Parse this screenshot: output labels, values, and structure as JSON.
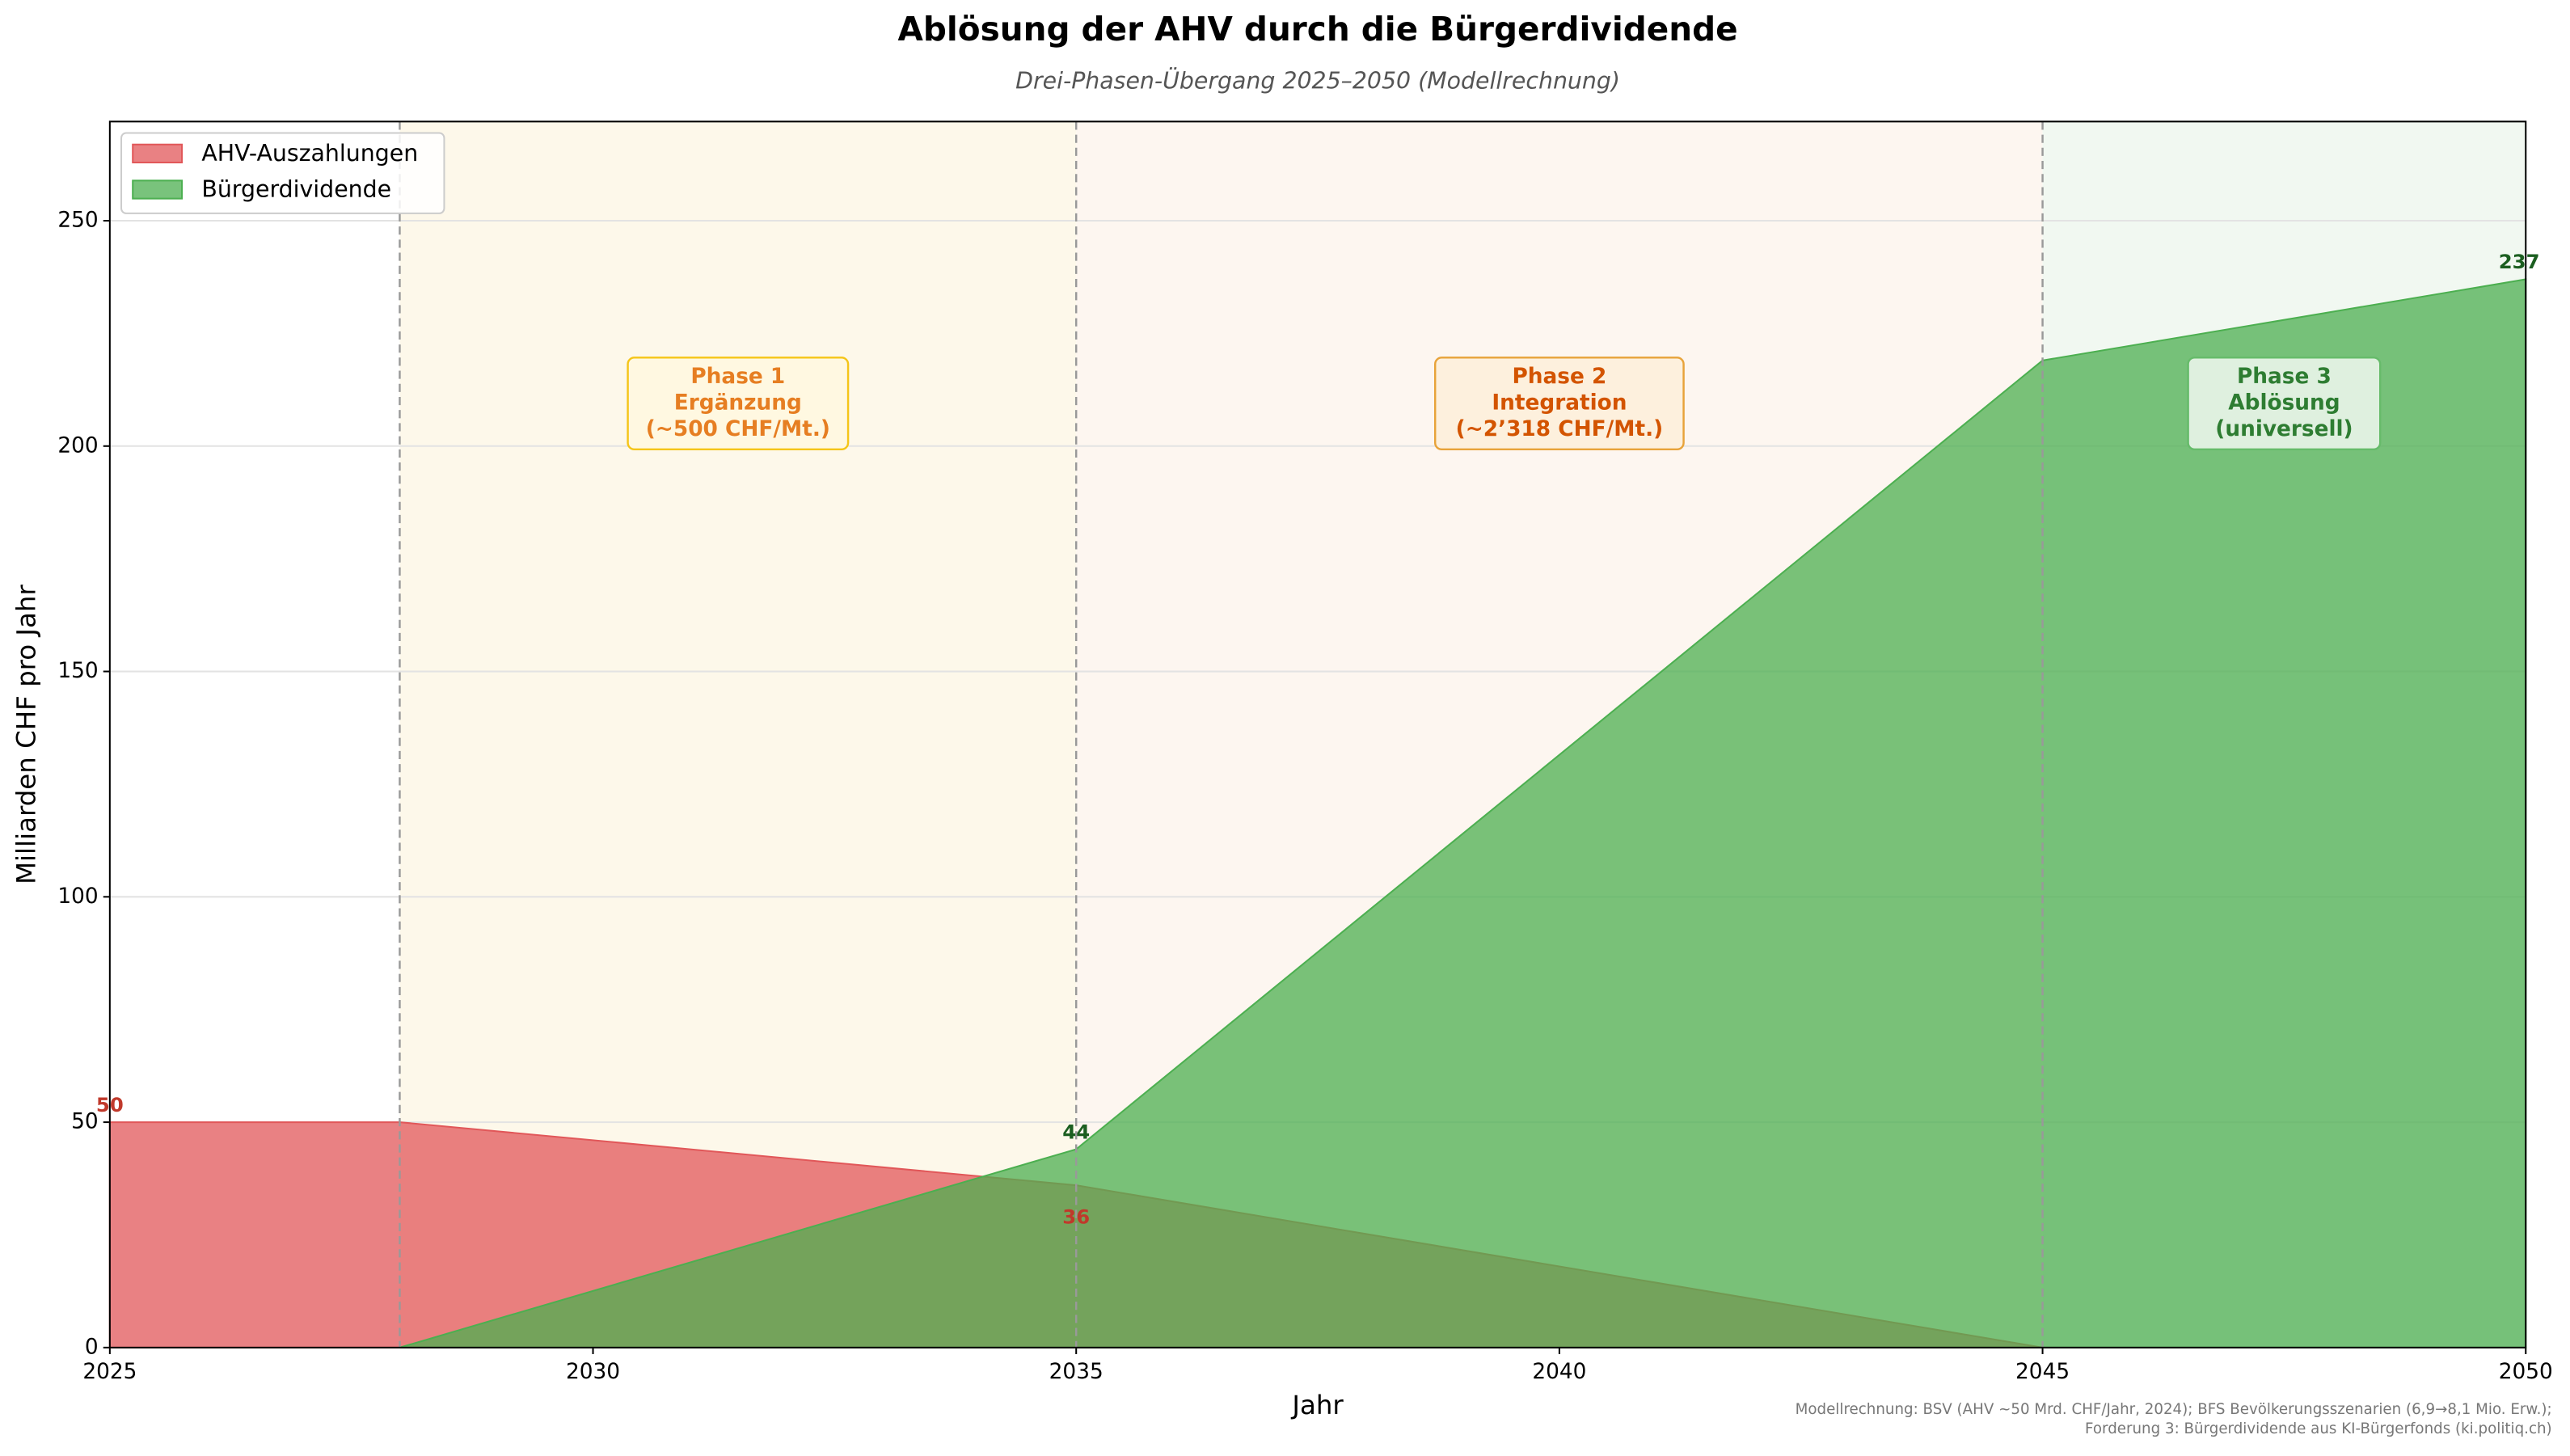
{
  "chart_data": {
    "type": "area",
    "title": "Ablösung der AHV durch die Bürgerdividende",
    "subtitle": "Drei-Phasen-Übergang 2025–2050 (Modellrechnung)",
    "xlabel": "Jahr",
    "ylabel": "Milliarden CHF pro Jahr",
    "x": [
      2025,
      2028,
      2035,
      2045,
      2050
    ],
    "series": [
      {
        "name": "AHV-Auszahlungen",
        "color": "#e15759",
        "label_color": "#c0392b",
        "values": [
          50,
          50,
          36,
          0,
          null
        ]
      },
      {
        "name": "Bürgerdividende",
        "color": "#4caf50",
        "label_color": "#1b5e20",
        "values": [
          null,
          0,
          44,
          219,
          237
        ]
      }
    ],
    "data_labels": [
      {
        "series": 0,
        "index": 0
      },
      {
        "series": 0,
        "index": 2
      },
      {
        "series": 1,
        "index": 2
      },
      {
        "series": 1,
        "index": 4
      }
    ],
    "phases": [
      {
        "start": 2028,
        "end": 2035,
        "color": "#fdf8ea",
        "box": "#fff8e1",
        "border": "#f5c518",
        "text_color": "#e67e22",
        "lines": [
          "Phase 1",
          "Ergänzung",
          "(~500 CHF/Mt.)"
        ]
      },
      {
        "start": 2035,
        "end": 2045,
        "color": "#fdf6f0",
        "box": "#fdf0dd",
        "border": "#e8a33a",
        "text_color": "#d35400",
        "lines": [
          "Phase 2",
          "Integration",
          "(~2’318 CHF/Mt.)"
        ]
      },
      {
        "start": 2045,
        "end": 2050,
        "color": "#f1f8f1",
        "box": "#dff0df",
        "border": "#66bb6a",
        "text_color": "#2e7d32",
        "lines": [
          "Phase 3",
          "Ablösung",
          "(universell)"
        ]
      }
    ],
    "xlim": [
      2025,
      2050
    ],
    "xticks": [
      2025,
      2030,
      2035,
      2040,
      2045,
      2050
    ],
    "ylim": [
      0,
      272
    ],
    "yticks": [
      0,
      50,
      100,
      150,
      200,
      250
    ],
    "grid": true,
    "legend": "upper-left",
    "footnote": [
      "Modellrechnung: BSV (AHV ~50 Mrd. CHF/Jahr, 2024); BFS Bevölkerungsszenarien (6,9→8,1 Mio. Erw.);",
      "Forderung 3: Bürgerdividende aus KI-Bürgerfonds (ki.politiq.ch)"
    ]
  }
}
